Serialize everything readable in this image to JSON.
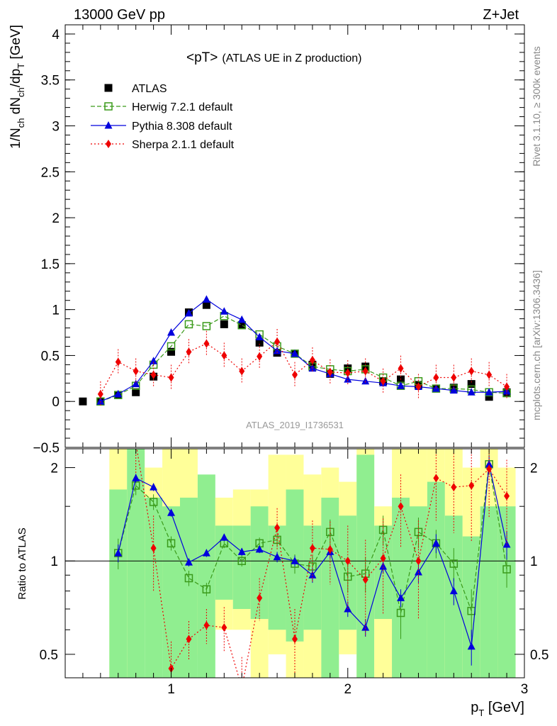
{
  "header": {
    "left": "13000 GeV pp",
    "right": "Z+Jet"
  },
  "side": {
    "rivet": "Rivet 3.1.10, ≥ 300k events",
    "mcplots": "mcplots.cern.ch [arXiv:1306.3436]"
  },
  "labels": {
    "title_main": "<pT>",
    "title_sub": "(ATLAS UE in Z production)",
    "watermark": "ATLAS_2019_I1736531",
    "ylabel_ratio": "Ratio to ATLAS",
    "xlabel": "p_T [GeV]",
    "ylabel_main": "1/N_ch dN_ch/dp_T [GeV]"
  },
  "colors": {
    "data": "#000000",
    "herwig": "#3a9a1a",
    "pythia": "#0000dd",
    "sherpa": "#ee0000",
    "band_green": "#90ee90",
    "band_yellow": "#ffff99"
  },
  "chart_data": [
    {
      "type": "scatter",
      "panel": "main",
      "xlim": [
        0.4,
        3.0
      ],
      "ylim": [
        -0.5,
        4.1
      ],
      "xticks": [
        1,
        2,
        3
      ],
      "yticks": [
        -0.5,
        0,
        0.5,
        1,
        1.5,
        2,
        2.5,
        3,
        3.5,
        4
      ],
      "ytick_labels": [
        "−0.5",
        "0",
        "0.5",
        "1",
        "1.5",
        "2",
        "2.5",
        "3",
        "3.5",
        "4"
      ],
      "legend_position": "top-left",
      "series": [
        {
          "name": "ATLAS",
          "key": "atlas",
          "marker": "square-filled",
          "x": [
            0.5,
            0.6,
            0.7,
            0.8,
            0.9,
            1.0,
            1.1,
            1.2,
            1.3,
            1.4,
            1.5,
            1.6,
            1.7,
            1.8,
            1.9,
            2.0,
            2.1,
            2.2,
            2.3,
            2.4,
            2.5,
            2.6,
            2.7,
            2.8,
            2.9
          ],
          "y": [
            0.0,
            0.0,
            0.07,
            0.1,
            0.27,
            0.54,
            0.97,
            1.05,
            0.84,
            0.83,
            0.64,
            0.53,
            0.52,
            0.4,
            0.3,
            0.36,
            0.38,
            0.22,
            0.24,
            0.18,
            0.14,
            0.15,
            0.19,
            0.05,
            0.1
          ]
        },
        {
          "name": "Herwig 7.2.1 default",
          "key": "herwig",
          "marker": "square-open",
          "line": "dashed",
          "x": [
            0.6,
            0.7,
            0.8,
            0.9,
            1.0,
            1.1,
            1.2,
            1.3,
            1.4,
            1.5,
            1.6,
            1.7,
            1.8,
            1.9,
            2.0,
            2.1,
            2.2,
            2.3,
            2.4,
            2.5,
            2.6,
            2.7,
            2.8,
            2.9
          ],
          "y": [
            0.0,
            0.07,
            0.17,
            0.4,
            0.6,
            0.84,
            0.82,
            0.93,
            0.83,
            0.73,
            0.6,
            0.52,
            0.38,
            0.35,
            0.33,
            0.35,
            0.26,
            0.17,
            0.22,
            0.14,
            0.14,
            0.13,
            0.1,
            0.09
          ]
        },
        {
          "name": "Pythia 8.308 default",
          "key": "pythia",
          "marker": "triangle-filled",
          "line": "solid",
          "x": [
            0.6,
            0.7,
            0.8,
            0.9,
            1.0,
            1.1,
            1.2,
            1.3,
            1.4,
            1.5,
            1.6,
            1.7,
            1.8,
            1.9,
            2.0,
            2.1,
            2.2,
            2.3,
            2.4,
            2.5,
            2.6,
            2.7,
            2.8,
            2.9
          ],
          "y": [
            0.0,
            0.08,
            0.19,
            0.44,
            0.75,
            0.96,
            1.11,
            0.98,
            0.89,
            0.7,
            0.55,
            0.52,
            0.36,
            0.3,
            0.24,
            0.22,
            0.2,
            0.17,
            0.16,
            0.14,
            0.12,
            0.1,
            0.1,
            0.11
          ]
        },
        {
          "name": "Sherpa 2.1.1 default",
          "key": "sherpa",
          "marker": "diamond-filled",
          "line": "dotted",
          "x": [
            0.6,
            0.7,
            0.8,
            0.9,
            1.0,
            1.1,
            1.2,
            1.3,
            1.4,
            1.5,
            1.6,
            1.7,
            1.8,
            1.9,
            2.0,
            2.1,
            2.2,
            2.3,
            2.4,
            2.5,
            2.6,
            2.7,
            2.8,
            2.9
          ],
          "y": [
            0.08,
            0.43,
            0.33,
            0.29,
            0.26,
            0.54,
            0.63,
            0.5,
            0.33,
            0.49,
            0.65,
            0.29,
            0.45,
            0.32,
            0.31,
            0.33,
            0.22,
            0.36,
            0.16,
            0.26,
            0.26,
            0.33,
            0.29,
            0.16
          ]
        }
      ]
    },
    {
      "type": "line",
      "panel": "ratio",
      "xlim": [
        0.4,
        3.0
      ],
      "ylim": [
        0.42,
        2.3
      ],
      "log_y": true,
      "yticks": [
        0.5,
        1,
        2
      ],
      "ytick_labels": [
        "0.5",
        "1",
        "2"
      ],
      "reference_line": 1,
      "xticks": [
        1,
        2,
        3
      ],
      "xtick_labels": [
        "1",
        "2",
        "3"
      ],
      "bands": {
        "x": [
          0.7,
          0.8,
          0.9,
          1.0,
          1.1,
          1.2,
          1.3,
          1.4,
          1.5,
          1.6,
          1.7,
          1.8,
          1.9,
          2.0,
          2.1,
          2.2,
          2.3,
          2.4,
          2.5,
          2.6,
          2.7,
          2.8,
          2.9
        ],
        "inner_lo": [
          0.3,
          0.3,
          0.3,
          0.3,
          0.3,
          0.3,
          0.75,
          0.7,
          0.65,
          0.6,
          0.55,
          0.6,
          0.3,
          0.6,
          0.3,
          0.65,
          0.3,
          0.3,
          0.3,
          0.3,
          0.3,
          0.3,
          0.3
        ],
        "inner_hi": [
          1.7,
          2.5,
          1.6,
          1.5,
          1.6,
          1.9,
          1.3,
          1.3,
          1.5,
          1.3,
          1.7,
          1.3,
          1.6,
          1.4,
          2.2,
          1.3,
          1.6,
          1.5,
          1.8,
          1.4,
          1.2,
          1.5,
          1.5
        ],
        "outer_lo": [
          0.3,
          0.3,
          0.7,
          0.6,
          0.5,
          0.5,
          0.6,
          0.6,
          0.3,
          0.5,
          0.4,
          0.3,
          0.3,
          0.5,
          0.3,
          0.3,
          0.3,
          0.3,
          0.3,
          0.3,
          0.3,
          0.3,
          0.3
        ],
        "outer_hi": [
          2.3,
          2.5,
          2.0,
          2.5,
          2.5,
          1.6,
          1.6,
          1.7,
          1.7,
          2.2,
          2.2,
          1.9,
          2.0,
          1.8,
          2.4,
          1.5,
          2.5,
          2.5,
          2.5,
          2.5,
          2.0,
          2.5,
          2.0
        ]
      },
      "series": [
        {
          "name": "Herwig 7.2.1 default",
          "key": "herwig",
          "x": [
            0.7,
            0.8,
            0.9,
            1.0,
            1.1,
            1.2,
            1.3,
            1.4,
            1.5,
            1.6,
            1.7,
            1.8,
            1.9,
            2.0,
            2.1,
            2.2,
            2.3,
            2.4,
            2.5,
            2.6,
            2.7,
            2.8,
            2.9
          ],
          "y": [
            1.06,
            1.75,
            1.55,
            1.14,
            0.88,
            0.81,
            1.14,
            1.0,
            1.14,
            1.17,
            0.98,
            0.96,
            1.24,
            0.89,
            0.91,
            1.26,
            0.68,
            1.24,
            1.14,
            0.98,
            0.69,
            2.05,
            0.94
          ],
          "err": [
            0.12,
            0.12,
            0.09,
            0.06,
            0.05,
            0.04,
            0.04,
            0.04,
            0.05,
            0.06,
            0.07,
            0.08,
            0.12,
            0.1,
            0.12,
            0.14,
            0.12,
            0.14,
            0.12,
            0.12,
            0.12,
            0.16,
            0.12
          ]
        },
        {
          "name": "Pythia 8.308 default",
          "key": "pythia",
          "x": [
            0.7,
            0.8,
            0.9,
            1.0,
            1.1,
            1.2,
            1.3,
            1.4,
            1.5,
            1.6,
            1.7,
            1.8,
            1.9,
            2.0,
            2.1,
            2.2,
            2.3,
            2.4,
            2.5,
            2.6,
            2.7,
            2.8,
            2.9
          ],
          "y": [
            1.06,
            1.85,
            1.73,
            1.43,
            0.99,
            1.06,
            1.19,
            1.07,
            1.09,
            1.03,
            1.0,
            0.9,
            1.07,
            0.7,
            0.61,
            0.96,
            0.76,
            0.92,
            1.14,
            0.8,
            0.53,
            2.05,
            1.13
          ],
          "err": [
            0.07,
            0.06,
            0.05,
            0.04,
            0.03,
            0.03,
            0.03,
            0.03,
            0.03,
            0.04,
            0.04,
            0.05,
            0.05,
            0.04,
            0.04,
            0.05,
            0.05,
            0.07,
            0.08,
            0.08,
            0.07,
            0.14,
            0.12
          ]
        },
        {
          "name": "Sherpa 2.1.1 default",
          "key": "sherpa",
          "x": [
            0.8,
            0.9,
            1.0,
            1.1,
            1.2,
            1.3,
            1.4,
            1.5,
            1.6,
            1.7,
            1.8,
            1.9,
            2.0,
            2.1,
            2.2,
            2.3,
            2.4,
            2.5,
            2.6,
            2.7,
            2.8,
            2.9
          ],
          "y": [
            2.4,
            1.1,
            0.45,
            0.56,
            0.62,
            0.61,
            0.39,
            0.76,
            1.28,
            0.56,
            1.1,
            1.09,
            1.0,
            0.87,
            1.02,
            1.5,
            1.0,
            1.85,
            1.73,
            1.75,
            1.98,
            1.62
          ],
          "err": [
            0.5,
            0.3,
            0.1,
            0.08,
            0.08,
            0.1,
            0.1,
            0.12,
            0.2,
            0.14,
            0.25,
            0.25,
            0.3,
            0.3,
            0.35,
            0.4,
            0.35,
            0.5,
            0.5,
            0.6,
            0.6,
            0.5
          ]
        }
      ]
    }
  ]
}
